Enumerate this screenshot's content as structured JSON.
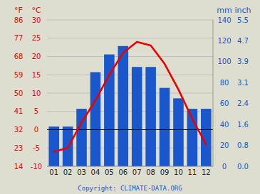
{
  "chart_data": {
    "type": "bar",
    "categories": [
      "01",
      "02",
      "03",
      "04",
      "05",
      "06",
      "07",
      "08",
      "09",
      "10",
      "11",
      "12"
    ],
    "series": [
      {
        "type": "bar",
        "color": "#1a56cc",
        "values": [
          38,
          38,
          55,
          90,
          107,
          115,
          95,
          95,
          75,
          65,
          55,
          55
        ]
      },
      {
        "type": "line",
        "axis": "y2",
        "color": "#ee0000",
        "values": [
          -6,
          -5,
          2,
          8,
          15,
          21,
          24,
          23,
          18,
          11,
          3,
          -4
        ]
      }
    ],
    "ylabel": "mm",
    "ylim": [
      0,
      140
    ],
    "yticks": [
      0,
      20,
      40,
      60,
      80,
      100,
      120,
      140
    ],
    "y_secondary_label": "inch",
    "y_secondary_ticks": [
      {
        "value": 0,
        "label": "0.0"
      },
      {
        "value": 20,
        "label": "0.8"
      },
      {
        "value": 40,
        "label": "1.6"
      },
      {
        "value": 60,
        "label": "2.4"
      },
      {
        "value": 80,
        "label": "3.1"
      },
      {
        "value": 100,
        "label": "3.9"
      },
      {
        "value": 120,
        "label": "4.7"
      },
      {
        "value": 140,
        "label": "5.5"
      }
    ],
    "y2label": "°C",
    "y2lim": [
      -10,
      30
    ],
    "y2ticks": [
      -10,
      -5,
      0,
      5,
      10,
      15,
      20,
      25,
      30
    ],
    "y2_secondary_label": "°F",
    "y2_secondary_ticks": [
      {
        "value": -10,
        "label": "14"
      },
      {
        "value": -5,
        "label": "23"
      },
      {
        "value": 0,
        "label": "32"
      },
      {
        "value": 5,
        "label": "41"
      },
      {
        "value": 10,
        "label": "50"
      },
      {
        "value": 15,
        "label": "59"
      },
      {
        "value": 20,
        "label": "68"
      },
      {
        "value": 25,
        "label": "77"
      },
      {
        "value": 30,
        "label": "86"
      }
    ],
    "grid": true,
    "annotations": [
      {
        "text": "Copyright: CLIMATE-DATA.ORG"
      }
    ]
  }
}
